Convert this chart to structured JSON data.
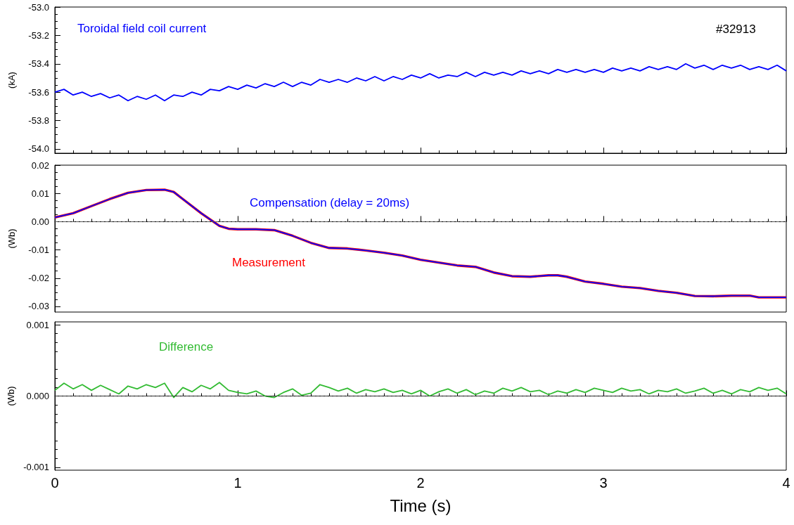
{
  "chart_data": [
    {
      "type": "line",
      "ylabel": "(kA)",
      "marker": "none",
      "tick_labels": "y",
      "annotations": [
        "#32913"
      ],
      "xlim": [
        0,
        4
      ],
      "xticks": [
        0,
        1,
        2,
        3,
        4
      ],
      "ylim": [
        -54.03,
        -53.0
      ],
      "yticks": [
        {
          "value": -54.0,
          "label": "-54.0"
        },
        {
          "value": -53.8,
          "label": "-53.8"
        },
        {
          "value": -53.6,
          "label": "-53.6"
        },
        {
          "value": -53.4,
          "label": "-53.4"
        },
        {
          "value": -53.2,
          "label": "-53.2"
        },
        {
          "value": -53.0,
          "label": "-53.0"
        }
      ],
      "x": [
        0,
        0.05,
        0.1,
        0.15,
        0.2,
        0.25,
        0.3,
        0.35,
        0.4,
        0.45,
        0.5,
        0.55,
        0.6,
        0.65,
        0.7,
        0.75,
        0.8,
        0.85,
        0.9,
        0.95,
        1,
        1.05,
        1.1,
        1.15,
        1.2,
        1.25,
        1.3,
        1.35,
        1.4,
        1.45,
        1.5,
        1.55,
        1.6,
        1.65,
        1.7,
        1.75,
        1.8,
        1.85,
        1.9,
        1.95,
        2,
        2.05,
        2.1,
        2.15,
        2.2,
        2.25,
        2.3,
        2.35,
        2.4,
        2.45,
        2.5,
        2.55,
        2.6,
        2.65,
        2.7,
        2.75,
        2.8,
        2.85,
        2.9,
        2.95,
        3,
        3.05,
        3.1,
        3.15,
        3.2,
        3.25,
        3.3,
        3.35,
        3.4,
        3.45,
        3.5,
        3.55,
        3.6,
        3.65,
        3.7,
        3.75,
        3.8,
        3.85,
        3.9,
        3.95,
        4
      ],
      "series": [
        {
          "name": "Toroidal field coil current",
          "color": "#0000ff",
          "values": [
            -53.6,
            -53.58,
            -53.62,
            -53.6,
            -53.63,
            -53.61,
            -53.64,
            -53.62,
            -53.66,
            -53.63,
            -53.65,
            -53.62,
            -53.66,
            -53.62,
            -53.63,
            -53.6,
            -53.62,
            -53.58,
            -53.59,
            -53.56,
            -53.58,
            -53.55,
            -53.57,
            -53.54,
            -53.56,
            -53.53,
            -53.56,
            -53.53,
            -53.55,
            -53.51,
            -53.53,
            -53.51,
            -53.53,
            -53.5,
            -53.52,
            -53.49,
            -53.52,
            -53.49,
            -53.51,
            -53.48,
            -53.5,
            -53.47,
            -53.5,
            -53.48,
            -53.49,
            -53.46,
            -53.49,
            -53.46,
            -53.48,
            -53.46,
            -53.48,
            -53.45,
            -53.47,
            -53.45,
            -53.47,
            -53.44,
            -53.46,
            -53.44,
            -53.46,
            -53.44,
            -53.46,
            -53.43,
            -53.45,
            -53.43,
            -53.45,
            -53.42,
            -53.44,
            -53.42,
            -53.44,
            -53.4,
            -53.43,
            -53.41,
            -53.44,
            -53.41,
            -53.43,
            -53.41,
            -53.44,
            -53.42,
            -53.44,
            -53.41,
            -53.45
          ]
        }
      ]
    },
    {
      "type": "line",
      "ylabel": "(Wb)",
      "marker": "none",
      "tick_labels": "y",
      "xlim": [
        0,
        4
      ],
      "xticks": [
        0,
        1,
        2,
        3,
        4
      ],
      "ylim": [
        -0.032,
        0.02
      ],
      "yticks": [
        {
          "value": -0.03,
          "label": "-0.03"
        },
        {
          "value": -0.02,
          "label": "-0.02"
        },
        {
          "value": -0.01,
          "label": "-0.01"
        },
        {
          "value": 0,
          "label": "0.00"
        },
        {
          "value": 0.01,
          "label": "0.01"
        },
        {
          "value": 0.02,
          "label": "0.02"
        }
      ],
      "ref_lines": [
        {
          "axis": "y",
          "value": 0,
          "color": "#555555",
          "line_style": "dashed"
        }
      ],
      "x": [
        0,
        0.1,
        0.2,
        0.3,
        0.4,
        0.5,
        0.6,
        0.65,
        0.7,
        0.8,
        0.9,
        0.95,
        1,
        1.1,
        1.2,
        1.3,
        1.4,
        1.5,
        1.6,
        1.7,
        1.8,
        1.9,
        2,
        2.1,
        2.2,
        2.3,
        2.4,
        2.5,
        2.6,
        2.7,
        2.75,
        2.8,
        2.9,
        3,
        3.1,
        3.2,
        3.3,
        3.4,
        3.5,
        3.6,
        3.7,
        3.8,
        3.85,
        4
      ],
      "series": [
        {
          "name": "Measurement",
          "color": "#ff0000",
          "values": [
            0.0015,
            0.003,
            0.0055,
            0.008,
            0.0102,
            0.0112,
            0.0113,
            0.0105,
            0.008,
            0.003,
            -0.0015,
            -0.0025,
            -0.0027,
            -0.0027,
            -0.003,
            -0.005,
            -0.0075,
            -0.0093,
            -0.0095,
            -0.0102,
            -0.011,
            -0.012,
            -0.0135,
            -0.0145,
            -0.0155,
            -0.016,
            -0.018,
            -0.0193,
            -0.0195,
            -0.019,
            -0.019,
            -0.0195,
            -0.0212,
            -0.022,
            -0.023,
            -0.0235,
            -0.0245,
            -0.0252,
            -0.0263,
            -0.0264,
            -0.0262,
            -0.0262,
            -0.0268,
            -0.0268
          ]
        },
        {
          "name": "Compensation (delay = 20ms)",
          "color": "#0000ff",
          "values": [
            0.0015,
            0.003,
            0.0055,
            0.008,
            0.0102,
            0.0112,
            0.0113,
            0.0105,
            0.008,
            0.003,
            -0.0015,
            -0.0025,
            -0.0027,
            -0.0027,
            -0.003,
            -0.005,
            -0.0075,
            -0.0093,
            -0.0095,
            -0.0102,
            -0.011,
            -0.012,
            -0.0135,
            -0.0145,
            -0.0155,
            -0.016,
            -0.018,
            -0.0193,
            -0.0195,
            -0.019,
            -0.019,
            -0.0195,
            -0.0212,
            -0.022,
            -0.023,
            -0.0235,
            -0.0245,
            -0.0252,
            -0.0263,
            -0.0264,
            -0.0262,
            -0.0262,
            -0.0268,
            -0.0268
          ]
        }
      ]
    },
    {
      "type": "line",
      "ylabel": "(Wb)",
      "xlabel": "Time (s)",
      "marker": "none",
      "xlim": [
        0,
        4
      ],
      "xticks": [
        0,
        1,
        2,
        3,
        4
      ],
      "ylim": [
        -0.00104,
        0.00104
      ],
      "yticks": [
        {
          "value": -0.001,
          "label": "-0.001"
        },
        {
          "value": 0,
          "label": "0.000"
        },
        {
          "value": 0.001,
          "label": "0.001"
        }
      ],
      "ref_lines": [
        {
          "axis": "y",
          "value": 0,
          "color": "#333333",
          "line_style": "dashed"
        }
      ],
      "x": [
        0,
        0.05,
        0.1,
        0.15,
        0.2,
        0.25,
        0.3,
        0.35,
        0.4,
        0.45,
        0.5,
        0.55,
        0.6,
        0.65,
        0.7,
        0.75,
        0.8,
        0.85,
        0.9,
        0.95,
        1,
        1.05,
        1.1,
        1.15,
        1.2,
        1.25,
        1.3,
        1.35,
        1.4,
        1.45,
        1.5,
        1.55,
        1.6,
        1.65,
        1.7,
        1.75,
        1.8,
        1.85,
        1.9,
        1.95,
        2,
        2.05,
        2.1,
        2.15,
        2.2,
        2.25,
        2.3,
        2.35,
        2.4,
        2.45,
        2.5,
        2.55,
        2.6,
        2.65,
        2.7,
        2.75,
        2.8,
        2.85,
        2.9,
        2.95,
        3,
        3.05,
        3.1,
        3.15,
        3.2,
        3.25,
        3.3,
        3.35,
        3.4,
        3.45,
        3.5,
        3.55,
        3.6,
        3.65,
        3.7,
        3.75,
        3.8,
        3.85,
        3.9,
        3.95,
        4
      ],
      "series": [
        {
          "name": "Difference",
          "color": "#33bb33",
          "values": [
            8e-05,
            0.00018,
            0.0001,
            0.00016,
            8e-05,
            0.00015,
            9e-05,
            3e-05,
            0.00014,
            0.0001,
            0.00016,
            0.00012,
            0.00018,
            -2e-05,
            0.00012,
            6e-05,
            0.00015,
            0.0001,
            0.00019,
            8e-05,
            5e-05,
            3e-05,
            7e-05,
            0,
            -2e-05,
            5e-05,
            0.0001,
            1e-05,
            4e-05,
            0.00016,
            0.00012,
            7e-05,
            0.00011,
            4e-05,
            9e-05,
            6e-05,
            0.0001,
            5e-05,
            8e-05,
            3e-05,
            8e-05,
            0,
            6e-05,
            0.0001,
            4e-05,
            9e-05,
            2e-05,
            7e-05,
            4e-05,
            0.00011,
            7e-05,
            0.00012,
            6e-05,
            8e-05,
            2e-05,
            7e-05,
            4e-05,
            9e-05,
            5e-05,
            0.00011,
            8e-05,
            5e-05,
            0.00011,
            7e-05,
            9e-05,
            3e-05,
            8e-05,
            6e-05,
            0.0001,
            4e-05,
            7e-05,
            0.00011,
            4e-05,
            8e-05,
            3e-05,
            9e-05,
            6e-05,
            0.00012,
            8e-05,
            0.00011,
            3e-05
          ]
        }
      ]
    }
  ]
}
